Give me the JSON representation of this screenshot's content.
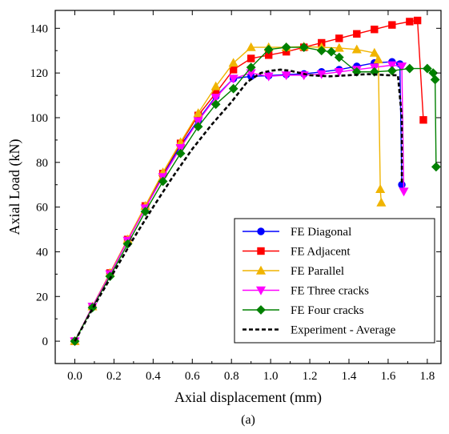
{
  "chart_data": {
    "type": "line",
    "xlabel": "Axial displacement (mm)",
    "ylabel": "Axial Load (kN)",
    "caption": "(a)",
    "xlim": [
      -0.1,
      1.87
    ],
    "ylim": [
      -10,
      148
    ],
    "xticks": [
      0.0,
      0.2,
      0.4,
      0.6,
      0.8,
      1.0,
      1.2,
      1.4,
      1.6,
      1.8
    ],
    "xtick_labels": [
      "0.0",
      "0.2",
      "0.4",
      "0.6",
      "0.8",
      "1.0",
      "1.2",
      "1.4",
      "1.6",
      "1.8"
    ],
    "yticks": [
      0,
      20,
      40,
      60,
      80,
      100,
      120,
      140
    ],
    "ytick_labels": [
      "0",
      "20",
      "40",
      "60",
      "80",
      "100",
      "120",
      "140"
    ],
    "legend_position": "bottom-right",
    "series": [
      {
        "name": "FE Diagonal",
        "color": "#0000ff",
        "marker": "circle",
        "line": "solid",
        "x": [
          0,
          0.09,
          0.18,
          0.27,
          0.36,
          0.45,
          0.54,
          0.63,
          0.72,
          0.81,
          0.9,
          0.99,
          1.08,
          1.17,
          1.26,
          1.35,
          1.44,
          1.53,
          1.62,
          1.66,
          1.67
        ],
        "y": [
          0,
          15.5,
          30.5,
          45.5,
          60,
          74.5,
          87.5,
          99,
          109.5,
          117.5,
          118.5,
          118.8,
          119.3,
          119.6,
          120.5,
          121.5,
          123,
          124.5,
          125,
          124,
          70
        ]
      },
      {
        "name": "FE Adjacent",
        "color": "#ff0000",
        "marker": "square",
        "line": "solid",
        "x": [
          0,
          0.09,
          0.18,
          0.27,
          0.36,
          0.45,
          0.54,
          0.63,
          0.72,
          0.81,
          0.9,
          0.99,
          1.08,
          1.17,
          1.26,
          1.35,
          1.44,
          1.53,
          1.62,
          1.71,
          1.75,
          1.78
        ],
        "y": [
          0,
          15.5,
          30.5,
          45.5,
          60.5,
          75,
          88.5,
          101,
          111,
          121.5,
          126.5,
          128,
          129.5,
          131.5,
          133.5,
          135.5,
          137.5,
          139.5,
          141.5,
          143,
          143.5,
          99
        ]
      },
      {
        "name": "FE Parallel",
        "color": "#f0b400",
        "marker": "triangle-up",
        "line": "solid",
        "x": [
          0,
          0.09,
          0.18,
          0.27,
          0.36,
          0.45,
          0.54,
          0.63,
          0.72,
          0.81,
          0.9,
          0.99,
          1.08,
          1.17,
          1.26,
          1.35,
          1.44,
          1.53,
          1.55,
          1.56,
          1.565
        ],
        "y": [
          0,
          15.5,
          30.5,
          45.5,
          60.5,
          75.5,
          89,
          102,
          114,
          124.5,
          131.5,
          131.5,
          131.5,
          131.8,
          131.5,
          131.2,
          130.5,
          129,
          126,
          68,
          62
        ]
      },
      {
        "name": "FE Three cracks",
        "color": "#ff00ff",
        "marker": "triangle-down",
        "line": "solid",
        "x": [
          0,
          0.09,
          0.18,
          0.27,
          0.36,
          0.45,
          0.54,
          0.63,
          0.72,
          0.81,
          0.9,
          0.99,
          1.08,
          1.17,
          1.26,
          1.35,
          1.44,
          1.53,
          1.62,
          1.67,
          1.68
        ],
        "y": [
          0,
          15.5,
          30,
          45,
          59.5,
          73.5,
          86.5,
          98.5,
          109,
          117.5,
          120,
          118.5,
          119,
          119,
          119.5,
          120.5,
          121.5,
          122.5,
          123.5,
          123,
          67
        ]
      },
      {
        "name": "FE Four cracks",
        "color": "#008000",
        "marker": "diamond",
        "line": "solid",
        "x": [
          0,
          0.09,
          0.18,
          0.27,
          0.36,
          0.45,
          0.54,
          0.63,
          0.72,
          0.81,
          0.9,
          0.99,
          1.08,
          1.17,
          1.26,
          1.31,
          1.35,
          1.44,
          1.53,
          1.62,
          1.71,
          1.8,
          1.83,
          1.84,
          1.845
        ],
        "y": [
          0,
          15,
          29,
          43.5,
          58,
          71.5,
          84,
          96,
          106,
          113,
          122.5,
          130.5,
          131.5,
          131.5,
          130,
          129.5,
          127,
          120.5,
          120.5,
          121,
          122,
          122,
          120,
          117,
          78
        ]
      },
      {
        "name": "Experiment - Average",
        "color": "#000000",
        "marker": "none",
        "line": "dashed",
        "x": [
          0,
          0.1,
          0.2,
          0.3,
          0.4,
          0.5,
          0.6,
          0.7,
          0.8,
          0.88,
          0.95,
          1.0,
          1.05,
          1.1,
          1.2,
          1.3,
          1.4,
          1.5,
          1.6,
          1.65,
          1.67,
          1.67
        ],
        "y": [
          0,
          16,
          31,
          46,
          60,
          73.5,
          86,
          97,
          107,
          116,
          120,
          121,
          121.5,
          121,
          119,
          118.5,
          119,
          119.5,
          119,
          119,
          100,
          70
        ]
      }
    ]
  }
}
